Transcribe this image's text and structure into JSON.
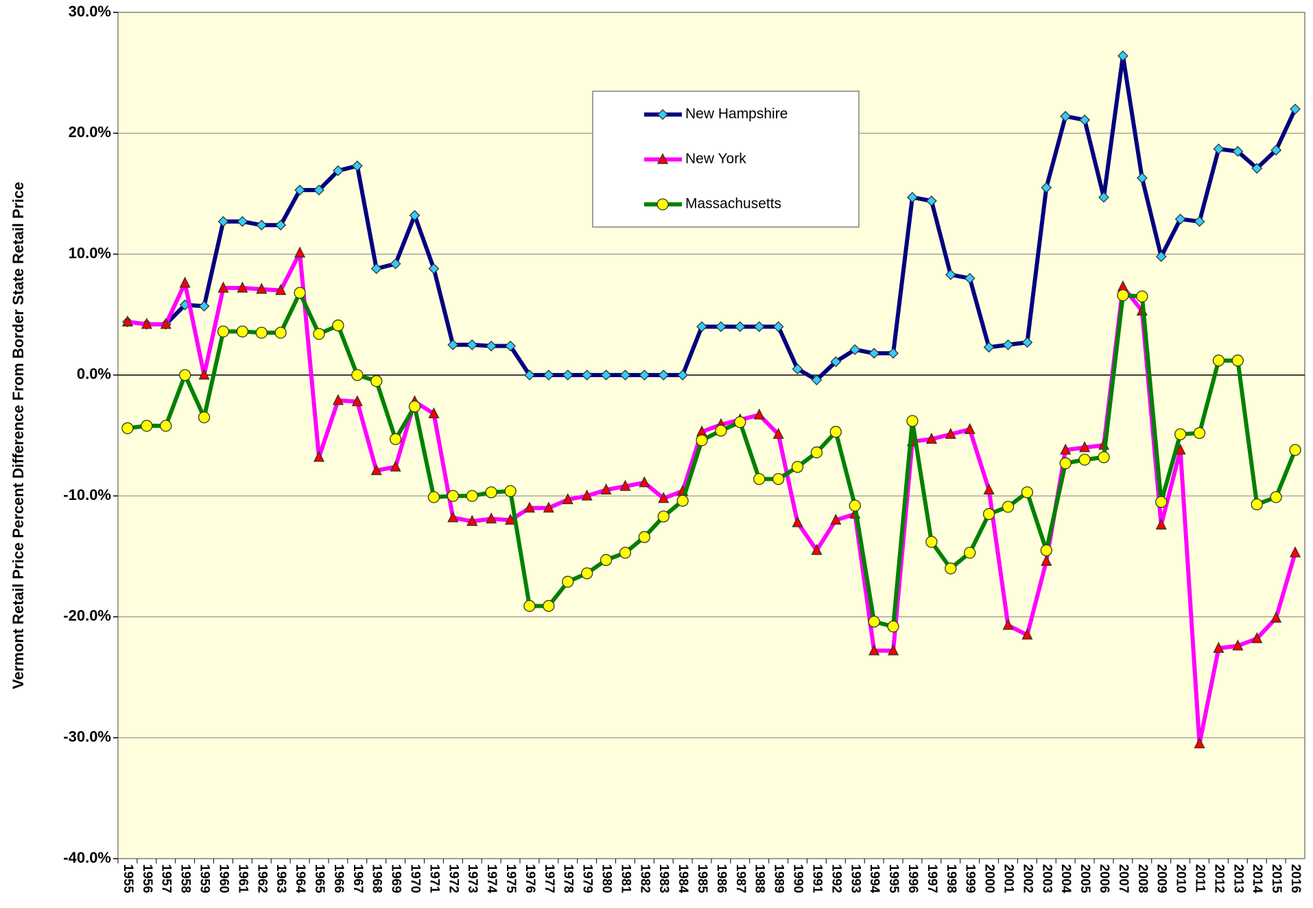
{
  "chart_data": {
    "type": "line",
    "y_label": "Vermont Retail Price Percent Difference From Border State Retail Price",
    "categories": [
      "1955",
      "1956",
      "1957",
      "1958",
      "1959",
      "1960",
      "1961",
      "1962",
      "1963",
      "1964",
      "1965",
      "1966",
      "1967",
      "1968",
      "1969",
      "1970",
      "1971",
      "1972",
      "1973",
      "1974",
      "1975",
      "1976",
      "1977",
      "1978",
      "1979",
      "1980",
      "1981",
      "1982",
      "1983",
      "1984",
      "1985",
      "1986",
      "1987",
      "1988",
      "1989",
      "1990",
      "1991",
      "1992",
      "1993",
      "1994",
      "1995",
      "1996",
      "1997",
      "1998",
      "1999",
      "2000",
      "2001",
      "2002",
      "2003",
      "2004",
      "2005",
      "2006",
      "2007",
      "2008",
      "2009",
      "2010",
      "2011",
      "2012",
      "2013",
      "2014",
      "2015",
      "2016"
    ],
    "series": [
      {
        "name": "New Hampshire",
        "color": "#000080",
        "marker": "diamond",
        "marker_color": "#33ccff",
        "values": [
          4.4,
          4.2,
          4.2,
          5.8,
          5.7,
          12.7,
          12.7,
          12.4,
          12.4,
          15.3,
          15.3,
          16.9,
          17.3,
          8.8,
          9.2,
          13.2,
          8.8,
          2.5,
          2.5,
          2.4,
          2.4,
          0,
          0,
          0,
          0,
          0,
          0,
          0,
          0,
          0,
          4.0,
          4.0,
          4.0,
          4.0,
          4.0,
          0.5,
          -0.4,
          1.1,
          2.1,
          1.8,
          1.8,
          14.7,
          14.4,
          8.3,
          8.0,
          2.3,
          2.5,
          2.7,
          15.5,
          21.4,
          21.1,
          14.7,
          26.4,
          16.3,
          9.8,
          12.9,
          12.7,
          18.7,
          18.5,
          17.1,
          18.6,
          22.0
        ]
      },
      {
        "name": "New York",
        "color": "#ff00ff",
        "marker": "triangle",
        "marker_color": "#ff0000",
        "values": [
          4.4,
          4.2,
          4.2,
          7.6,
          0.0,
          7.2,
          7.2,
          7.1,
          7.0,
          10.1,
          -6.8,
          -2.1,
          -2.2,
          -7.9,
          -7.6,
          -2.2,
          -3.2,
          -11.8,
          -12.1,
          -11.9,
          -12.0,
          -11.0,
          -11.0,
          -10.3,
          -10.0,
          -9.5,
          -9.2,
          -8.9,
          -10.2,
          -9.6,
          -4.7,
          -4.1,
          -3.7,
          -3.3,
          -4.9,
          -12.2,
          -14.5,
          -12.0,
          -11.5,
          -22.8,
          -22.8,
          -5.5,
          -5.3,
          -4.9,
          -4.5,
          -9.5,
          -20.7,
          -21.5,
          -15.4,
          -6.2,
          -6.0,
          -5.8,
          7.3,
          5.3,
          -12.4,
          -6.2,
          -30.5,
          -22.6,
          -22.4,
          -21.8,
          -20.1,
          -14.7
        ]
      },
      {
        "name": "Massachusetts",
        "color": "#008000",
        "marker": "circle",
        "marker_color": "#ffff00",
        "values": [
          -4.4,
          -4.2,
          -4.2,
          0.0,
          -3.5,
          3.6,
          3.6,
          3.5,
          3.5,
          6.8,
          3.4,
          4.1,
          0.0,
          -0.5,
          -5.3,
          -2.6,
          -10.1,
          -10.0,
          -10.0,
          -9.7,
          -9.6,
          -19.1,
          -19.1,
          -17.1,
          -16.4,
          -15.3,
          -14.7,
          -13.4,
          -11.7,
          -10.4,
          -5.4,
          -4.6,
          -3.9,
          -8.6,
          -8.6,
          -7.6,
          -6.4,
          -4.7,
          -10.8,
          -20.4,
          -20.8,
          -3.8,
          -13.8,
          -16.0,
          -14.7,
          -11.5,
          -10.9,
          -9.7,
          -14.5,
          -7.3,
          -7.0,
          -6.8,
          6.6,
          6.5,
          -10.5,
          -4.9,
          -4.8,
          1.2,
          1.2,
          -10.7,
          -10.1,
          -6.2
        ]
      }
    ],
    "ylim": [
      -40,
      30
    ],
    "yticks": [
      {
        "value": -40,
        "label": "-40.0%"
      },
      {
        "value": -30,
        "label": "-30.0%"
      },
      {
        "value": -20,
        "label": "-20.0%"
      },
      {
        "value": -10,
        "label": "-10.0%"
      },
      {
        "value": 0,
        "label": "0.0%"
      },
      {
        "value": 10,
        "label": "10.0%"
      },
      {
        "value": 20,
        "label": "20.0%"
      },
      {
        "value": 30,
        "label": "30.0%"
      }
    ],
    "grid": true,
    "plot_background": "#ffffdd"
  }
}
